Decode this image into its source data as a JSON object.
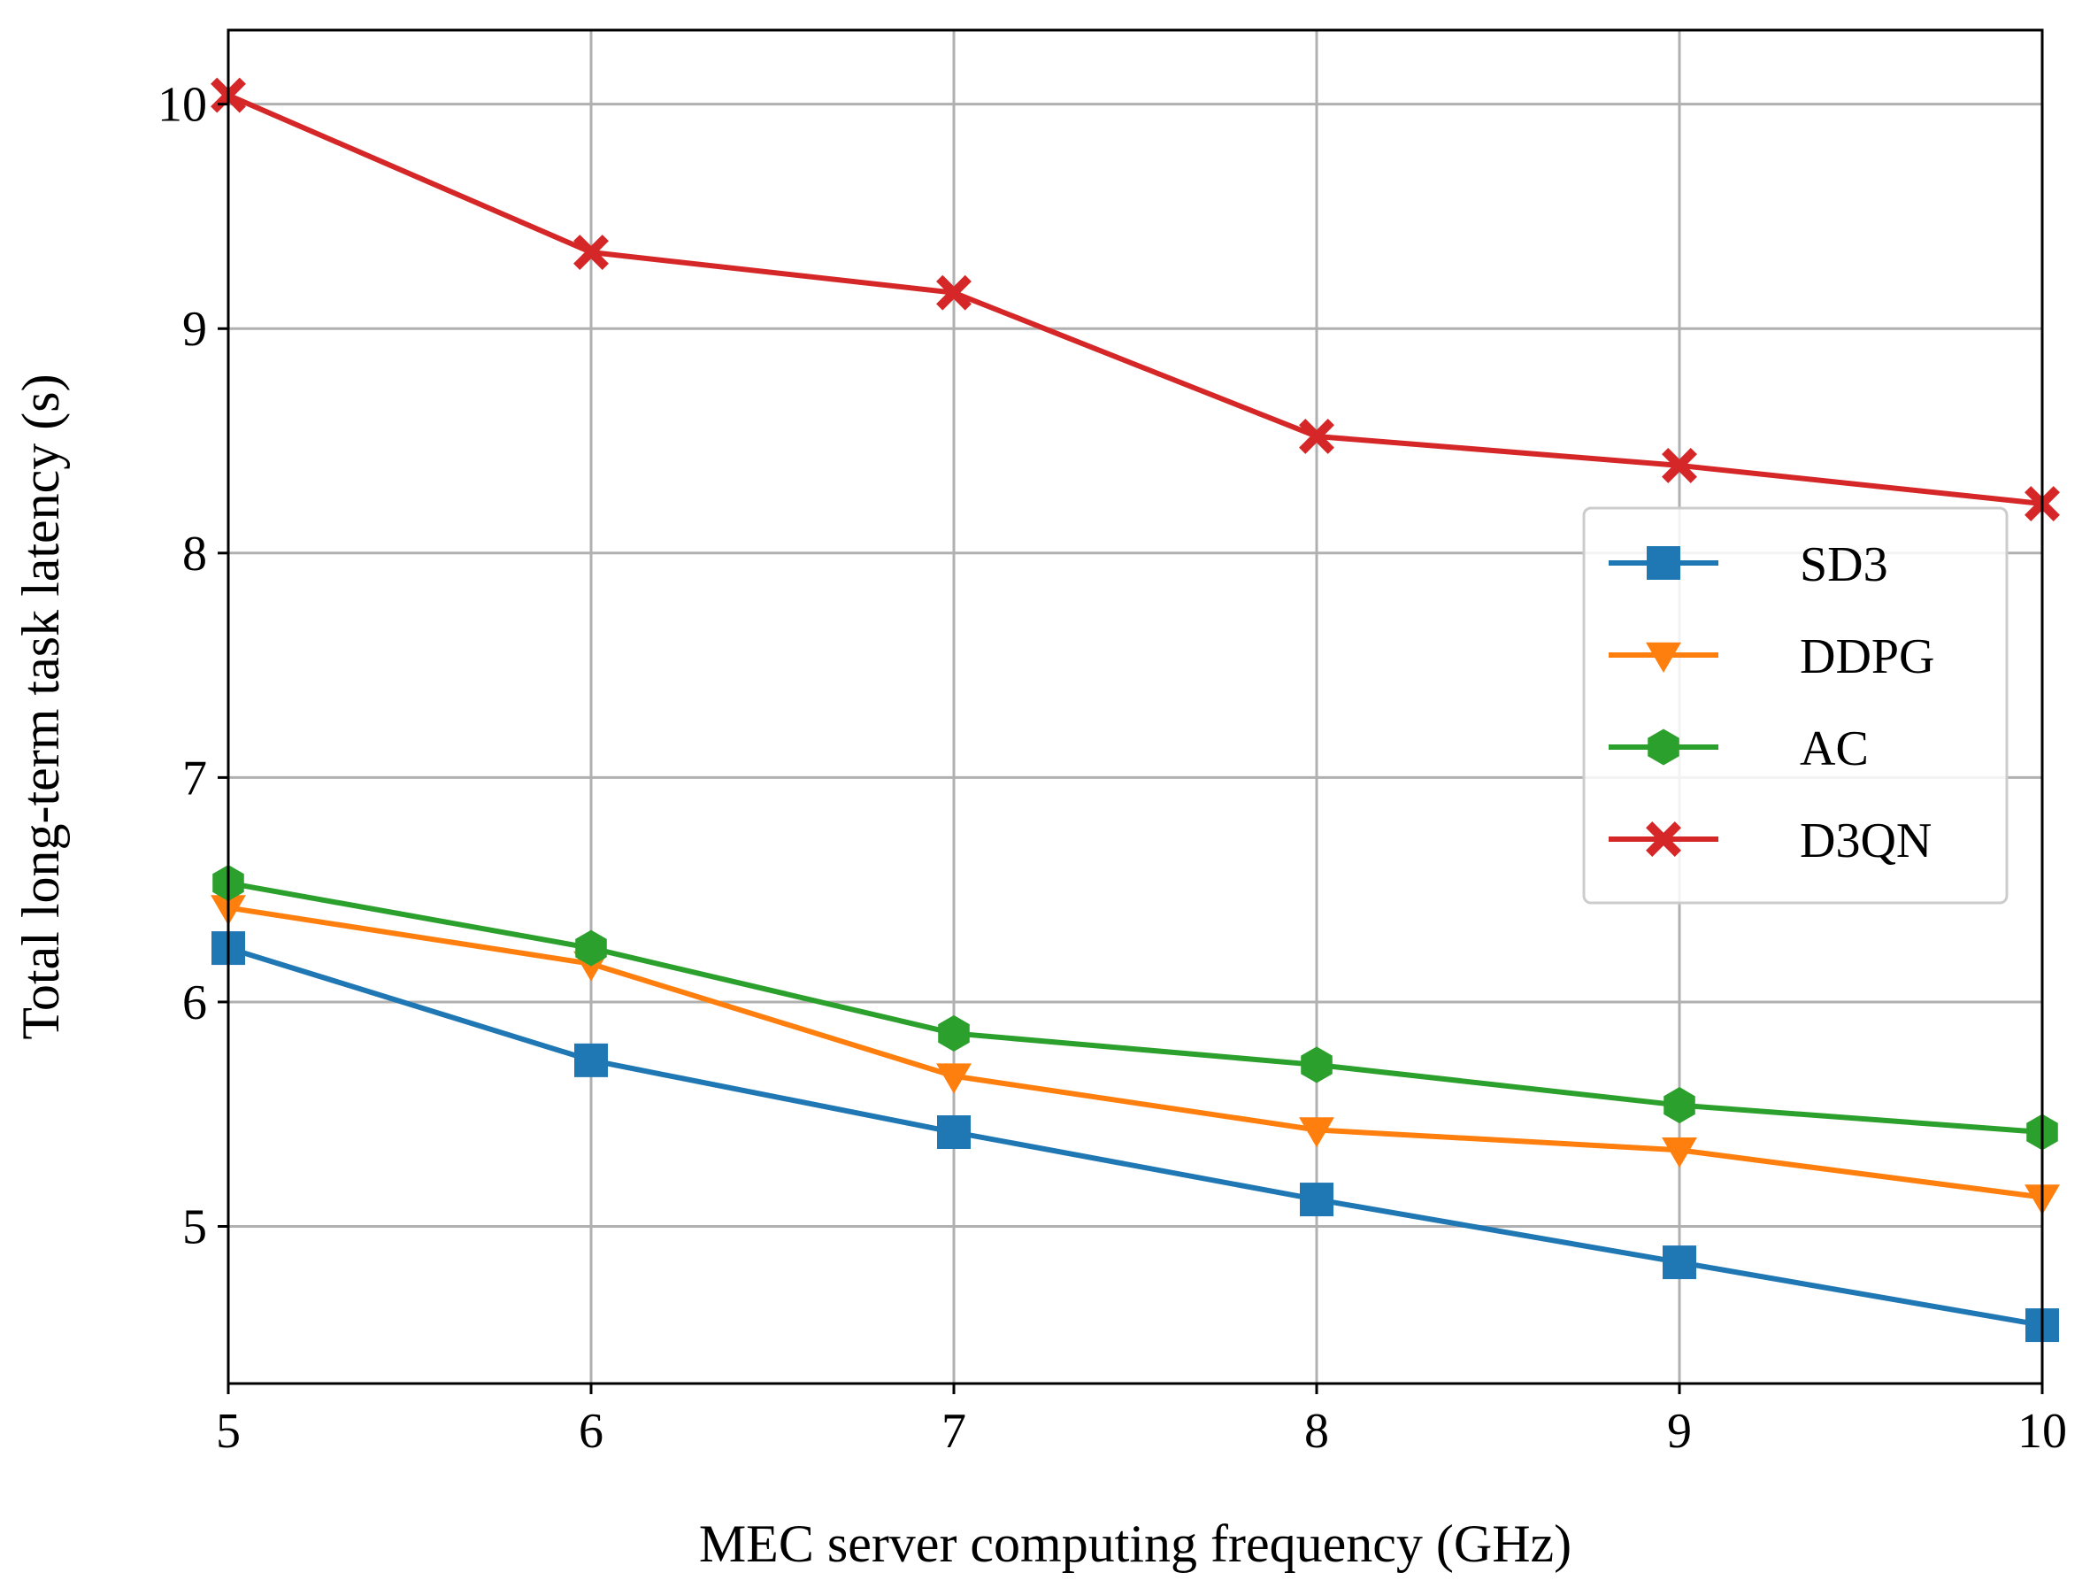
{
  "chart_data": {
    "type": "line",
    "title": "",
    "xlabel": "MEC server computing frequency (GHz)",
    "ylabel": "Total long-term task latency (s)",
    "x": [
      5,
      6,
      7,
      8,
      9,
      10
    ],
    "xlim": [
      5,
      10
    ],
    "ylim": [
      4.3,
      10.33
    ],
    "xticks": [
      "5",
      "6",
      "7",
      "8",
      "9",
      "10"
    ],
    "yticks": [
      "5",
      "6",
      "7",
      "8",
      "9",
      "10"
    ],
    "grid": true,
    "legend_position": "center-right",
    "series": [
      {
        "name": "SD3",
        "color": "#1f77b4",
        "marker": "square",
        "values": [
          6.24,
          5.74,
          5.42,
          5.12,
          4.84,
          4.56
        ]
      },
      {
        "name": "DDPG",
        "color": "#ff7f0e",
        "marker": "triangle-down",
        "values": [
          6.42,
          6.17,
          5.67,
          5.43,
          5.34,
          5.13
        ]
      },
      {
        "name": "AC",
        "color": "#2ca02c",
        "marker": "hexagon",
        "values": [
          6.53,
          6.24,
          5.86,
          5.72,
          5.54,
          5.42
        ]
      },
      {
        "name": "D3QN",
        "color": "#d62728",
        "marker": "x-filled",
        "values": [
          10.04,
          9.34,
          9.16,
          8.52,
          8.39,
          8.22
        ]
      }
    ]
  }
}
